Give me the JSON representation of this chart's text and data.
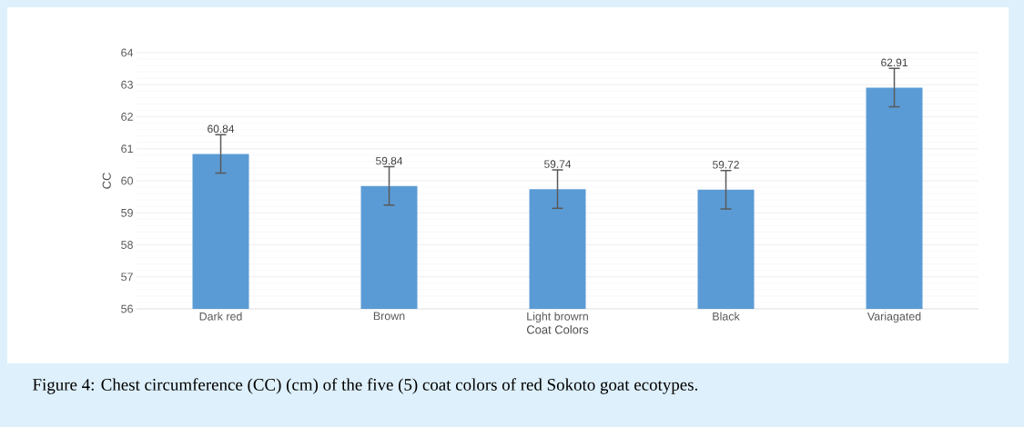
{
  "chart_data": {
    "type": "bar",
    "categories": [
      "Dark red",
      "Brown",
      "Light browrn",
      "Black",
      "Variagated"
    ],
    "values": [
      60.84,
      59.84,
      59.74,
      59.72,
      62.91
    ],
    "errors": [
      0.6,
      0.6,
      0.6,
      0.6,
      0.6
    ],
    "color": "#5b9bd5",
    "xlabel": "Coat Colors",
    "ylabel": "CC",
    "ylim": [
      56,
      64
    ],
    "yticks": [
      56,
      57,
      58,
      59,
      60,
      61,
      62,
      63,
      64
    ],
    "grid": "y",
    "data_labels": true,
    "annotations": [
      "Figure 4: Chest circumference (CC) (cm) of the five (5) coat colors of red Sokoto goat ecotypes."
    ]
  }
}
